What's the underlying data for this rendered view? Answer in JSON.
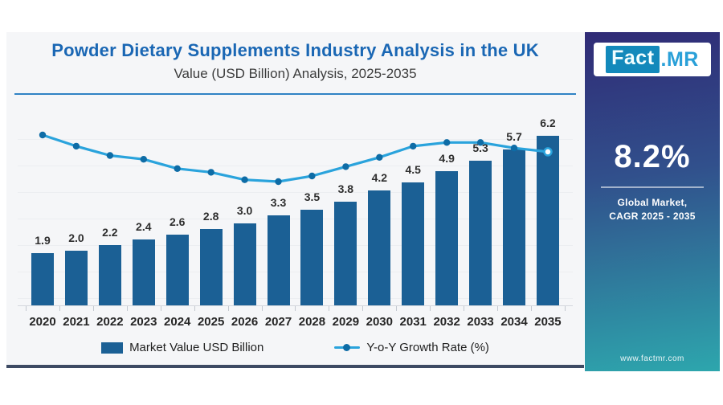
{
  "header": {
    "title": "Powder Dietary Supplements Industry Analysis in the UK",
    "subtitle": "Value (USD Billion) Analysis, 2025-2035"
  },
  "legend": {
    "bar_label": "Market Value USD Billion",
    "line_label": "Y-o-Y Growth Rate (%)"
  },
  "side_panel": {
    "logo_fact": "Fact",
    "logo_mr": ".MR",
    "cagr_value": "8.2%",
    "cagr_caption_line1": "Global Market,",
    "cagr_caption_line2": "CAGR 2025 - 2035",
    "website": "www.factmr.com"
  },
  "colors": {
    "title_blue": "#1a67b4",
    "accent_rule": "#2f82c4",
    "bar": "#1b6095",
    "line": "#2aa3dc",
    "line_dot": "#0e6ca6",
    "card_border": "#3d4a63",
    "panel_gradient_top": "#302b76",
    "panel_gradient_mid": "#31508c",
    "panel_gradient_bottom": "#2da6ad"
  },
  "chart_data": {
    "type": "bar",
    "subtype": "bar-line combo",
    "title": "Powder Dietary Supplements Industry Analysis in the UK",
    "subtitle": "Value (USD Billion) Analysis, 2025-2035",
    "xlabel": "",
    "ylabel": "",
    "grid": "faint horizontal gridlines",
    "legend_position": "bottom",
    "categories": [
      "2020",
      "2021",
      "2022",
      "2023",
      "2024",
      "2025",
      "2026",
      "2027",
      "2028",
      "2029",
      "2030",
      "2031",
      "2032",
      "2033",
      "2034",
      "2035"
    ],
    "series": [
      {
        "name": "Market Value USD Billion",
        "type": "bar",
        "values": [
          1.9,
          2.0,
          2.2,
          2.4,
          2.6,
          2.8,
          3.0,
          3.3,
          3.5,
          3.8,
          4.2,
          4.5,
          4.9,
          5.3,
          5.7,
          6.2
        ],
        "data_labels_shown": true
      },
      {
        "name": "Y-o-Y Growth Rate (%)",
        "type": "line",
        "values_estimated": [
          9.5,
          8.9,
          8.4,
          8.2,
          7.7,
          7.5,
          7.1,
          7.0,
          7.3,
          7.8,
          8.3,
          8.9,
          9.1,
          9.1,
          8.8,
          8.6
        ],
        "data_labels_shown": false,
        "last_point_marker": "hollow"
      }
    ],
    "bar_value_range_shown": [
      1.9,
      6.2
    ]
  }
}
